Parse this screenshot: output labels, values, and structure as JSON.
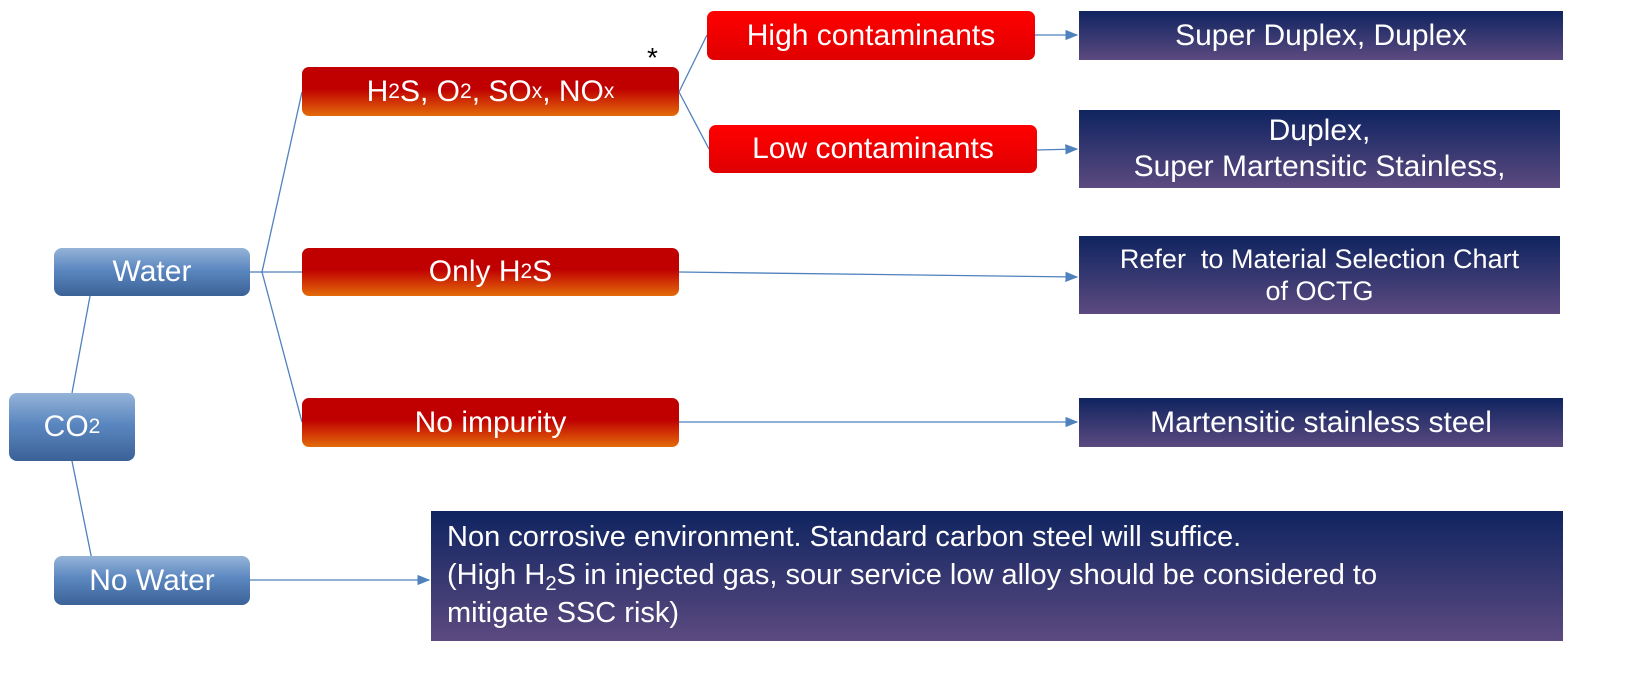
{
  "nodes": {
    "co2": {
      "main": "CO",
      "sub": "2"
    },
    "water": "Water",
    "no_water": "No Water",
    "impurities": {
      "p1": "H",
      "s1": "2",
      "p2": "S, O",
      "s2": "2",
      "p3": ", SO",
      "s3": "x",
      "p4": ", NO",
      "s4": "x"
    },
    "asterisk": "*",
    "only_h2s": {
      "p1": "Only H",
      "s1": "2",
      "p2": "S"
    },
    "no_impurity": "No impurity",
    "high_contaminants": "High contaminants",
    "low_contaminants": "Low contaminants"
  },
  "results": {
    "high": "Super Duplex, Duplex",
    "low_line1": "Duplex,",
    "low_line2": "Super Martensitic Stainless,",
    "only_h2s_line1": "Refer  to Material Selection Chart",
    "only_h2s_line2": "of OCTG",
    "no_impurity": "Martensitic stainless steel",
    "no_water_line1": "Non corrosive environment. Standard carbon steel will suffice.",
    "no_water_line2a": "(High H",
    "no_water_sub": "2",
    "no_water_line2b": "S in injected gas, sour service low alloy should be considered to",
    "no_water_line3": "mitigate SSC risk)"
  },
  "colors": {
    "connector": "#4f81bd",
    "blue_node": "#4f81bd",
    "red_node": "#c00000",
    "result": "#1f2a60"
  }
}
